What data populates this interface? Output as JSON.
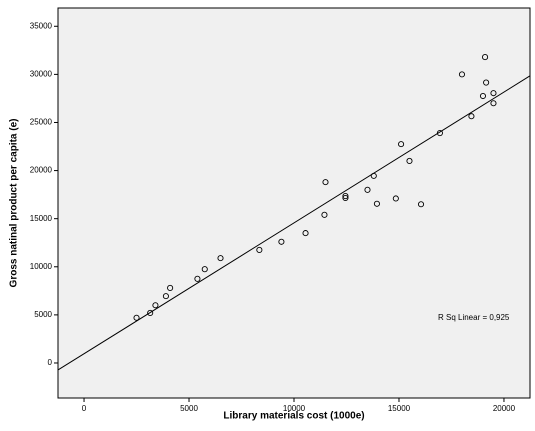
{
  "chart_data": {
    "type": "scatter",
    "xlabel": "Library materials cost (1000e)",
    "ylabel": "Gross natinal product per capita (e)",
    "annotation": "R Sq Linear = 0,925",
    "x": [
      2500,
      3150,
      3400,
      3900,
      4100,
      5400,
      5750,
      6500,
      8350,
      9400,
      10550,
      11450,
      11500,
      12450,
      12450,
      13500,
      13800,
      13950,
      14850,
      15100,
      15500,
      16050,
      16950,
      18000,
      18450,
      19000,
      19150,
      19100,
      19500,
      19500
    ],
    "values": [
      4700,
      5200,
      6000,
      6950,
      7800,
      8750,
      9750,
      10900,
      11750,
      12600,
      13500,
      15400,
      18800,
      17150,
      17350,
      18000,
      19450,
      16550,
      17100,
      22750,
      21000,
      16500,
      23900,
      30000,
      25650,
      27750,
      29150,
      31800,
      28050,
      27000
    ],
    "color": "#000000",
    "fit": {
      "intercept": 960,
      "slope": 1.36
    },
    "xlim": [
      -1240,
      21240
    ],
    "ylim": [
      -3640,
      36900
    ],
    "xticks": [
      0,
      5000,
      10000,
      15000,
      20000
    ],
    "yticks": [
      0,
      5000,
      10000,
      15000,
      20000,
      25000,
      30000,
      35000
    ]
  }
}
